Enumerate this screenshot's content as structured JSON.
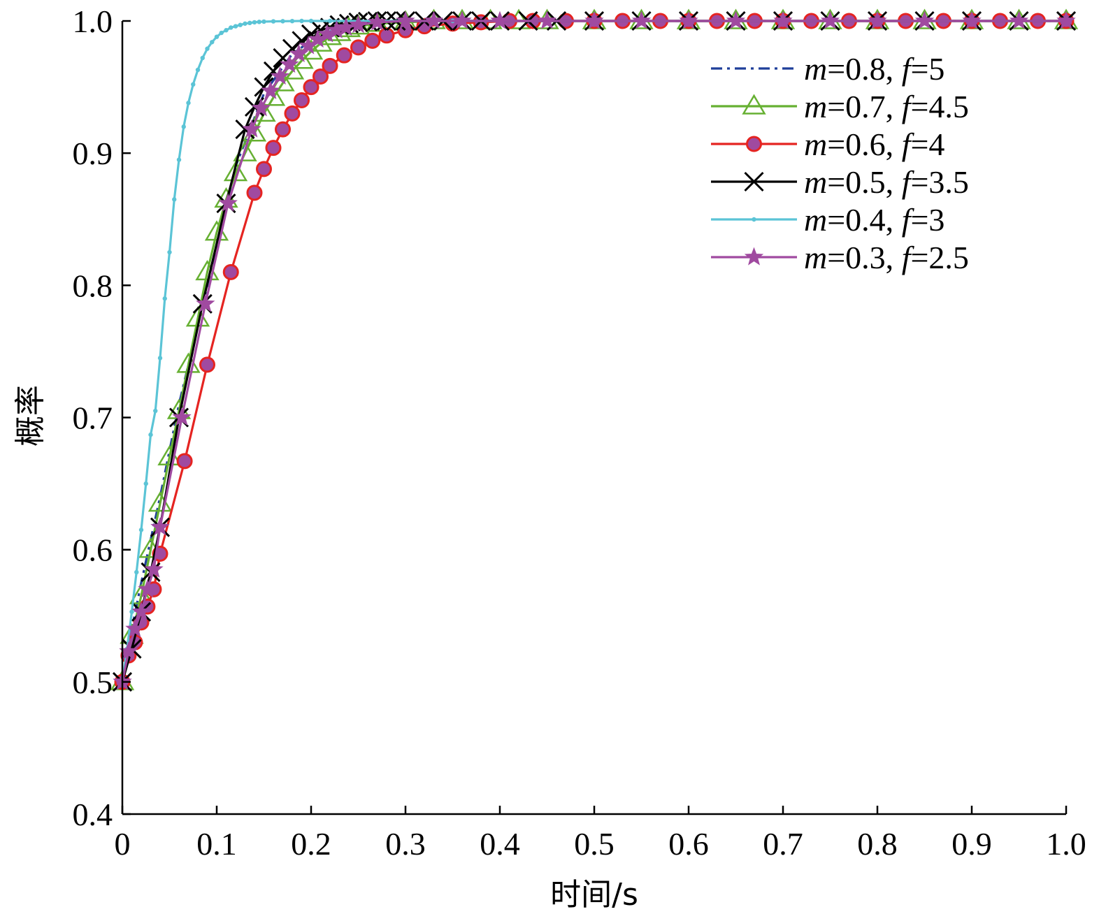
{
  "chart_data": {
    "type": "line",
    "title": "",
    "xlabel": "时间/s",
    "ylabel": "概率",
    "xlim": [
      0,
      1.0
    ],
    "ylim": [
      0.4,
      1.0
    ],
    "xticks": [
      "0",
      "0.1",
      "0.2",
      "0.3",
      "0.4",
      "0.5",
      "0.6",
      "0.7",
      "0.8",
      "0.9",
      "1.0"
    ],
    "yticks": [
      "0.4",
      "0.5",
      "0.6",
      "0.7",
      "0.8",
      "0.9",
      "1.0"
    ],
    "legend_position": "top-right",
    "grid": false,
    "series": [
      {
        "name_m": "m",
        "name_m_value": "=0.8, ",
        "name_f": "f",
        "name_f_value": "=5",
        "color": "#1f3f9a",
        "dash": "dashdot",
        "marker": "none",
        "x": [
          0,
          0.01,
          0.02,
          0.04,
          0.06,
          0.09,
          0.12,
          0.15,
          0.18,
          0.21,
          0.24,
          0.27,
          0.3,
          0.35,
          0.4,
          0.5,
          0.6,
          0.7,
          0.8,
          0.9,
          1.0
        ],
        "y": [
          0.5,
          0.54,
          0.575,
          0.64,
          0.71,
          0.8,
          0.89,
          0.945,
          0.975,
          0.99,
          0.996,
          0.999,
          1.0,
          1.0,
          1.0,
          1.0,
          1.0,
          1.0,
          1.0,
          1.0,
          1.0
        ]
      },
      {
        "name_m": "m",
        "name_m_value": "=0.7, ",
        "name_f": "f",
        "name_f_value": "=4.5",
        "color": "#66b032",
        "dash": "solid",
        "marker": "triangle",
        "x": [
          0,
          0.01,
          0.02,
          0.03,
          0.04,
          0.05,
          0.06,
          0.07,
          0.08,
          0.09,
          0.1,
          0.11,
          0.12,
          0.13,
          0.14,
          0.15,
          0.16,
          0.17,
          0.18,
          0.19,
          0.2,
          0.21,
          0.22,
          0.23,
          0.24,
          0.25,
          0.27,
          0.3,
          0.33,
          0.36,
          0.39,
          0.42,
          0.45,
          0.5,
          0.55,
          0.6,
          0.65,
          0.7,
          0.75,
          0.8,
          0.85,
          0.9,
          0.95,
          1.0
        ],
        "y": [
          0.5,
          0.535,
          0.565,
          0.6,
          0.635,
          0.67,
          0.705,
          0.74,
          0.775,
          0.81,
          0.84,
          0.865,
          0.885,
          0.9,
          0.915,
          0.93,
          0.942,
          0.953,
          0.962,
          0.97,
          0.977,
          0.983,
          0.988,
          0.991,
          0.994,
          0.996,
          0.998,
          0.999,
          1.0,
          1.0,
          1.0,
          1.0,
          1.0,
          1.0,
          1.0,
          1.0,
          1.0,
          1.0,
          1.0,
          1.0,
          1.0,
          1.0,
          1.0,
          1.0
        ]
      },
      {
        "name_m": "m",
        "name_m_value": "=0.6, ",
        "name_f": "f",
        "name_f_value": "=4",
        "color": "#e52421",
        "dash": "solid",
        "marker": "circle",
        "marker_fill": "#a04aa0",
        "x": [
          0,
          0.0066,
          0.0133,
          0.02,
          0.0266,
          0.0333,
          0.04,
          0.066,
          0.09,
          0.115,
          0.14,
          0.15,
          0.16,
          0.17,
          0.18,
          0.19,
          0.2,
          0.21,
          0.22,
          0.235,
          0.25,
          0.265,
          0.28,
          0.3,
          0.32,
          0.35,
          0.38,
          0.41,
          0.435,
          0.47,
          0.5,
          0.53,
          0.57,
          0.6,
          0.63,
          0.67,
          0.7,
          0.73,
          0.77,
          0.8,
          0.83,
          0.87,
          0.9,
          0.93,
          0.97,
          1.0
        ],
        "y": [
          0.5,
          0.52,
          0.53,
          0.545,
          0.557,
          0.57,
          0.597,
          0.667,
          0.74,
          0.81,
          0.87,
          0.888,
          0.904,
          0.918,
          0.93,
          0.94,
          0.95,
          0.958,
          0.966,
          0.974,
          0.98,
          0.985,
          0.989,
          0.993,
          0.996,
          0.998,
          0.999,
          1.0,
          1.0,
          1.0,
          1.0,
          1.0,
          1.0,
          1.0,
          1.0,
          1.0,
          1.0,
          1.0,
          1.0,
          1.0,
          1.0,
          1.0,
          1.0,
          1.0,
          1.0,
          1.0
        ]
      },
      {
        "name_m": "m",
        "name_m_value": "=0.5, ",
        "name_f": "f",
        "name_f_value": "=3.5",
        "color": "#000000",
        "dash": "solid",
        "marker": "x",
        "x": [
          0,
          0.01,
          0.02,
          0.03,
          0.04,
          0.06,
          0.085,
          0.11,
          0.13,
          0.14,
          0.15,
          0.16,
          0.17,
          0.18,
          0.19,
          0.2,
          0.21,
          0.22,
          0.23,
          0.24,
          0.25,
          0.26,
          0.27,
          0.28,
          0.29,
          0.3,
          0.32,
          0.34,
          0.36,
          0.38,
          0.4,
          0.43,
          0.46,
          0.5,
          0.55,
          0.6,
          0.65,
          0.7,
          0.75,
          0.8,
          0.85,
          0.9,
          0.95,
          1.0
        ],
        "y": [
          0.5,
          0.525,
          0.553,
          0.583,
          0.617,
          0.7,
          0.786,
          0.862,
          0.918,
          0.935,
          0.95,
          0.962,
          0.972,
          0.979,
          0.985,
          0.99,
          0.993,
          0.995,
          0.997,
          0.998,
          0.999,
          0.9995,
          1.0,
          1.0,
          1.0,
          1.0,
          1.0,
          1.0,
          1.0,
          1.0,
          1.0,
          1.0,
          1.0,
          1.0,
          1.0,
          1.0,
          1.0,
          1.0,
          1.0,
          1.0,
          1.0,
          1.0,
          1.0,
          1.0
        ]
      },
      {
        "name_m": "m",
        "name_m_value": "=0.4, ",
        "name_f": "f",
        "name_f_value": "=3",
        "color": "#5bc4d6",
        "dash": "solid",
        "marker": "dot",
        "x": [
          0,
          0.005,
          0.01,
          0.015,
          0.02,
          0.025,
          0.03,
          0.035,
          0.04,
          0.045,
          0.05,
          0.055,
          0.06,
          0.065,
          0.07,
          0.075,
          0.08,
          0.085,
          0.09,
          0.095,
          0.1,
          0.105,
          0.11,
          0.115,
          0.12,
          0.125,
          0.13,
          0.135,
          0.14,
          0.145,
          0.15,
          0.16,
          0.17,
          0.18,
          0.19,
          0.2,
          0.22,
          0.25,
          0.3,
          0.35,
          0.4,
          0.5,
          0.6,
          0.7,
          0.8,
          0.9,
          1.0
        ],
        "y": [
          0.5,
          0.525,
          0.553,
          0.583,
          0.615,
          0.65,
          0.687,
          0.705,
          0.745,
          0.79,
          0.825,
          0.865,
          0.895,
          0.92,
          0.938,
          0.952,
          0.963,
          0.972,
          0.979,
          0.984,
          0.988,
          0.991,
          0.993,
          0.995,
          0.996,
          0.997,
          0.998,
          0.9985,
          0.999,
          0.9993,
          0.9995,
          0.9997,
          0.9998,
          0.9999,
          1.0,
          1.0,
          1.0,
          1.0,
          1.0,
          1.0,
          1.0,
          1.0,
          1.0,
          1.0,
          1.0,
          1.0,
          1.0
        ]
      },
      {
        "name_m": "m",
        "name_m_value": "=0.3, ",
        "name_f": "f",
        "name_f_value": "=2.5",
        "color": "#a04aa0",
        "dash": "solid",
        "marker": "star",
        "x": [
          0,
          0.0066,
          0.0133,
          0.02,
          0.0266,
          0.0333,
          0.04,
          0.063,
          0.088,
          0.112,
          0.137,
          0.147,
          0.157,
          0.167,
          0.177,
          0.187,
          0.197,
          0.207,
          0.217,
          0.227,
          0.237,
          0.25,
          0.27,
          0.3,
          0.33,
          0.36,
          0.4,
          0.45,
          0.5,
          0.55,
          0.6,
          0.65,
          0.7,
          0.75,
          0.8,
          0.85,
          0.9,
          0.95,
          1.0
        ],
        "y": [
          0.5,
          0.523,
          0.54,
          0.553,
          0.57,
          0.585,
          0.617,
          0.7,
          0.786,
          0.862,
          0.918,
          0.934,
          0.947,
          0.958,
          0.967,
          0.975,
          0.981,
          0.986,
          0.99,
          0.993,
          0.995,
          0.997,
          0.999,
          1.0,
          1.0,
          1.0,
          1.0,
          1.0,
          1.0,
          1.0,
          1.0,
          1.0,
          1.0,
          1.0,
          1.0,
          1.0,
          1.0,
          1.0,
          1.0
        ]
      }
    ]
  }
}
